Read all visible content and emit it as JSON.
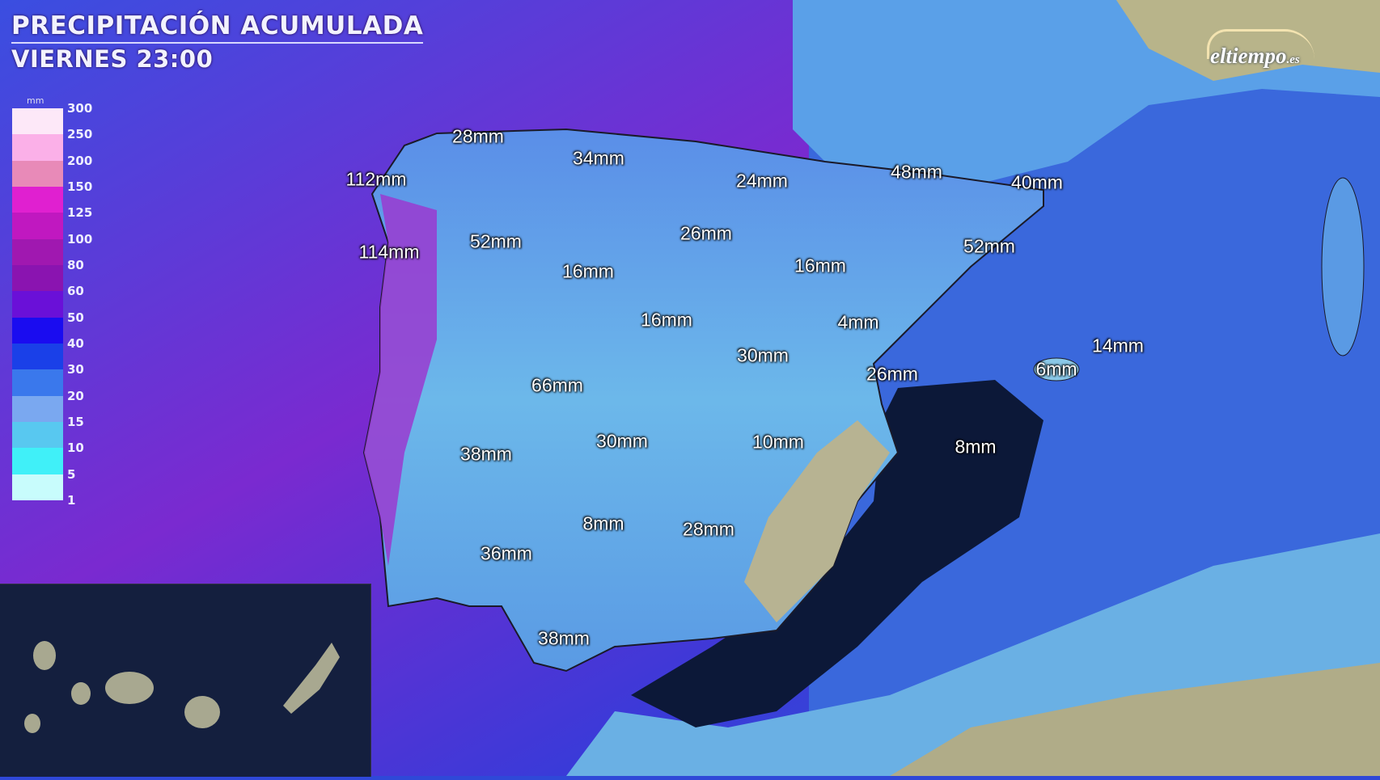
{
  "header": {
    "title": "PRECIPITACIÓN ACUMULADA",
    "subtitle": "VIERNES 23:00"
  },
  "brand": {
    "logo_text": "eltiempo",
    "logo_suffix": ".es"
  },
  "legend": {
    "unit": "mm",
    "labels": [
      "300",
      "250",
      "200",
      "150",
      "125",
      "100",
      "80",
      "60",
      "50",
      "40",
      "30",
      "20",
      "15",
      "10",
      "5",
      "1"
    ],
    "colors": [
      "#fde8f8",
      "#fbb0e8",
      "#e88ab8",
      "#e020d0",
      "#c018c0",
      "#a018b0",
      "#8a14b0",
      "#6a10d8",
      "#1a0cf0",
      "#1a40e8",
      "#3a78ec",
      "#7aa8f0",
      "#58c8f0",
      "#40f0f8",
      "#c8fcfc"
    ]
  },
  "map": {
    "land_color": "#7ad0e8",
    "sea_color": "#2a40d0",
    "dry_sea_color": "#0c1838",
    "amounts": [
      {
        "label": "28mm"
      },
      {
        "label": "34mm"
      },
      {
        "label": "112mm"
      },
      {
        "label": "24mm"
      },
      {
        "label": "48mm"
      },
      {
        "label": "40mm"
      },
      {
        "label": "26mm"
      },
      {
        "label": "52mm"
      },
      {
        "label": "52mm"
      },
      {
        "label": "114mm"
      },
      {
        "label": "16mm"
      },
      {
        "label": "16mm"
      },
      {
        "label": "16mm"
      },
      {
        "label": "4mm"
      },
      {
        "label": "30mm"
      },
      {
        "label": "14mm"
      },
      {
        "label": "6mm"
      },
      {
        "label": "26mm"
      },
      {
        "label": "66mm"
      },
      {
        "label": "38mm"
      },
      {
        "label": "30mm"
      },
      {
        "label": "10mm"
      },
      {
        "label": "8mm"
      },
      {
        "label": "8mm"
      },
      {
        "label": "28mm"
      },
      {
        "label": "36mm"
      },
      {
        "label": "38mm"
      }
    ]
  }
}
